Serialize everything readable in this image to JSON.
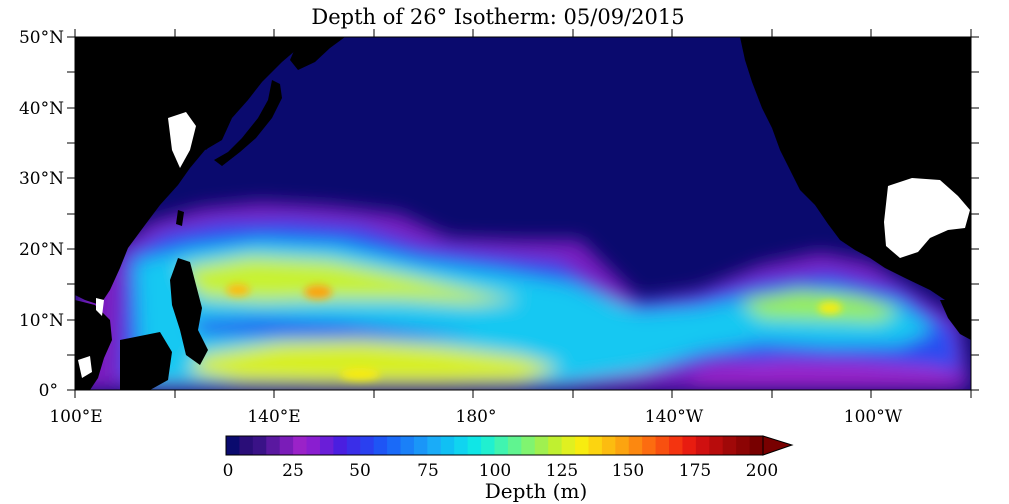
{
  "title": "Depth of 26° Isotherm: 05/09/2015",
  "map": {
    "lat_labels": [
      "50°N",
      "40°N",
      "30°N",
      "20°N",
      "10°N",
      "0°"
    ],
    "lon_labels": [
      "100°E",
      "140°E",
      "180°",
      "140°W",
      "100°W"
    ],
    "colors": {
      "land": "#000000",
      "shallow": "#0a0a6e",
      "background": "#ffffff"
    }
  },
  "colorbar": {
    "ticks": [
      "0",
      "25",
      "50",
      "75",
      "100",
      "125",
      "150",
      "175",
      "200"
    ],
    "label": "Depth (m)",
    "range": [
      0,
      200
    ],
    "step": 5,
    "extend": "max",
    "palette": [
      "#0a0a6e",
      "#2a0d78",
      "#3a1287",
      "#5a18a0",
      "#7a1cb8",
      "#9a22c8",
      "#8a1ed0",
      "#6a1ed8",
      "#4a1ee0",
      "#3a2ee8",
      "#2a40f0",
      "#1e55f5",
      "#1a6af8",
      "#1a80f8",
      "#1a96f8",
      "#1aacf8",
      "#10c0f4",
      "#10d4f0",
      "#10e6e6",
      "#20f0d0",
      "#40f4b0",
      "#60f490",
      "#80f470",
      "#a0f050",
      "#c0f030",
      "#e0f020",
      "#f8ec10",
      "#fcd410",
      "#fcbc10",
      "#fca410",
      "#fc8810",
      "#fc6c10",
      "#f85010",
      "#f43410",
      "#e81c10",
      "#d01010",
      "#b80c0c",
      "#a00808",
      "#8c0404",
      "#780000"
    ]
  }
}
